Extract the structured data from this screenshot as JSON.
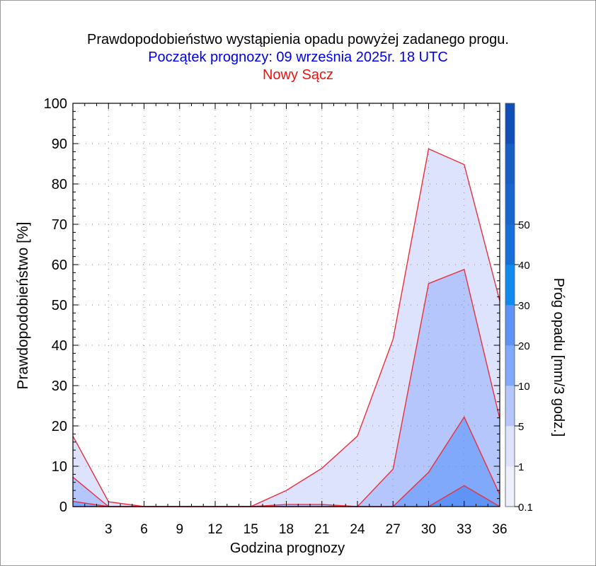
{
  "chart_data": {
    "type": "area",
    "title": "Prawdopodobieństwo wystąpienia opadu powyżej zadanego progu.",
    "subtitle": "Początek prognozy: 09 września 2025r. 18 UTC",
    "location": "Nowy Sącz",
    "xlabel": "Godzina prognozy",
    "ylabel": "Prawdopodobieństwo [%]",
    "xlim": [
      0,
      36
    ],
    "ylim": [
      0,
      100
    ],
    "x_ticks": [
      3,
      6,
      9,
      12,
      15,
      18,
      21,
      24,
      27,
      30,
      33,
      36
    ],
    "y_ticks": [
      0,
      10,
      20,
      30,
      40,
      50,
      60,
      70,
      80,
      90,
      100
    ],
    "grid": true,
    "x": [
      0,
      3,
      6,
      9,
      12,
      15,
      18,
      21,
      24,
      27,
      30,
      33,
      36
    ],
    "series": [
      {
        "threshold": 0.1,
        "color": "#dde3fd",
        "values": [
          17.5,
          1.2,
          0,
          0,
          0,
          0,
          4,
          9.5,
          17.5,
          41.5,
          88.7,
          84.8,
          51
        ]
      },
      {
        "threshold": 1,
        "color": "#b4c6fb",
        "values": [
          7.3,
          0,
          0,
          0,
          0,
          0,
          0.5,
          0.5,
          0,
          9.3,
          55.3,
          58.8,
          21.8
        ]
      },
      {
        "threshold": 5,
        "color": "#80a9fc",
        "values": [
          1.3,
          0,
          0,
          0,
          0,
          0,
          0,
          0,
          0,
          0,
          8.5,
          22.2,
          3
        ]
      },
      {
        "threshold": 10,
        "color": "#5f93f5",
        "values": [
          0,
          0,
          0,
          0,
          0,
          0,
          0,
          0,
          0,
          0,
          0,
          5.2,
          0
        ]
      }
    ],
    "colorbar": {
      "label": "Próg opadu [mm/3 godz.]",
      "tick_labels": [
        "0.1",
        "1",
        "5",
        "10",
        "20",
        "30",
        "40",
        "50"
      ],
      "colors": [
        "#eef0fe",
        "#dde3fd",
        "#b4c6fb",
        "#80a9fc",
        "#5f93f5",
        "#0f8bf0",
        "#1470d8",
        "#1766d0",
        "#155ec8",
        "#104eb8"
      ]
    }
  }
}
